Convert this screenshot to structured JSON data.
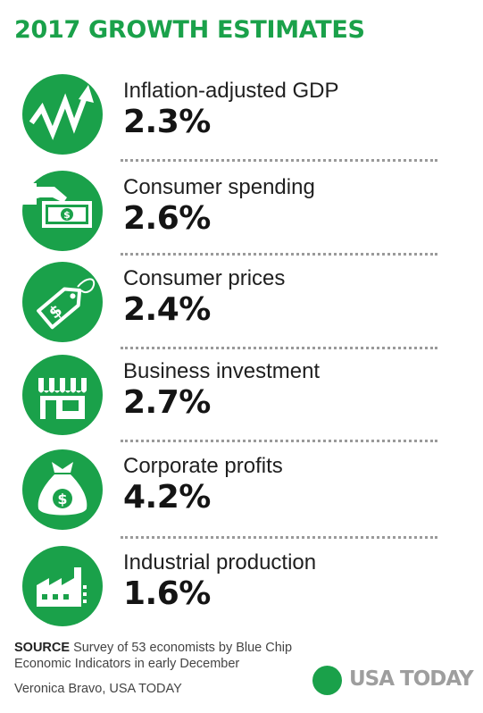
{
  "theme": {
    "accent": "#1aa14a"
  },
  "chart_data": {
    "type": "table",
    "title": "2017 GROWTH ESTIMATES",
    "rows": [
      {
        "label": "Inflation-adjusted GDP",
        "value": "2.3%",
        "icon": "zigzag-arrow-icon"
      },
      {
        "label": "Consumer spending",
        "value": "2.6%",
        "icon": "hand-cash-icon"
      },
      {
        "label": "Consumer prices",
        "value": "2.4%",
        "icon": "price-tag-icon"
      },
      {
        "label": "Business investment",
        "value": "2.7%",
        "icon": "storefront-icon"
      },
      {
        "label": "Corporate profits",
        "value": "4.2%",
        "icon": "money-bag-icon"
      },
      {
        "label": "Industrial production",
        "value": "1.6%",
        "icon": "factory-icon"
      }
    ]
  },
  "footer": {
    "source_label": "SOURCE",
    "source_text": " Survey of 53 economists by Blue Chip Economic Indicators in early December",
    "credit": "Veronica Bravo, USA TODAY",
    "logo": "USA TODAY"
  }
}
